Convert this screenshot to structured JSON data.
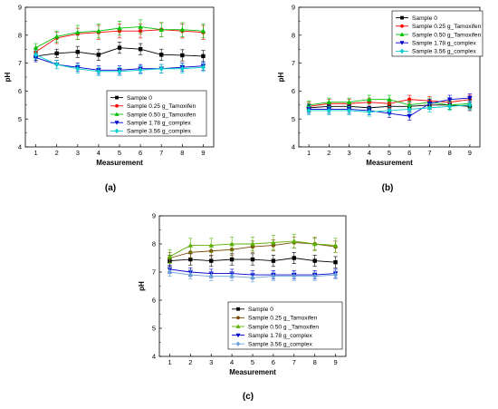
{
  "chart_data": [
    {
      "panel_label": "(a)",
      "type": "line",
      "xlabel": "Measurement",
      "ylabel": "pH",
      "x": [
        1,
        2,
        3,
        4,
        5,
        6,
        7,
        8,
        9
      ],
      "xlim": [
        0.5,
        9.5
      ],
      "ylim": [
        4,
        9
      ],
      "xticks": [
        1,
        2,
        3,
        4,
        5,
        6,
        7,
        8,
        9
      ],
      "yticks": [
        4,
        5,
        6,
        7,
        8,
        9
      ],
      "legend_position": "bottom-center",
      "error_bars": true,
      "series": [
        {
          "name": "Sample 0",
          "color": "#000000",
          "marker": "square",
          "values": [
            7.25,
            7.35,
            7.4,
            7.3,
            7.55,
            7.5,
            7.3,
            7.28,
            7.25
          ],
          "errors": [
            0.15,
            0.15,
            0.2,
            0.2,
            0.2,
            0.2,
            0.2,
            0.2,
            0.2
          ]
        },
        {
          "name": "Sample 0.25 g_Tamoxifen",
          "color": "#ff0000",
          "marker": "circle",
          "values": [
            7.4,
            7.9,
            8.05,
            8.1,
            8.15,
            8.15,
            8.2,
            8.15,
            8.1
          ],
          "errors": [
            0.15,
            0.2,
            0.2,
            0.25,
            0.25,
            0.25,
            0.25,
            0.25,
            0.25
          ]
        },
        {
          "name": "Sample 0.50 g_Tamoxifen",
          "color": "#00c000",
          "marker": "triangle-up",
          "values": [
            7.55,
            7.95,
            8.1,
            8.15,
            8.25,
            8.3,
            8.2,
            8.2,
            8.15
          ],
          "errors": [
            0.15,
            0.2,
            0.25,
            0.25,
            0.25,
            0.25,
            0.25,
            0.25,
            0.25
          ]
        },
        {
          "name": "Sample 1.78 g_complex",
          "color": "#0000cc",
          "marker": "triangle-down",
          "values": [
            7.2,
            6.95,
            6.85,
            6.75,
            6.75,
            6.8,
            6.8,
            6.85,
            6.9
          ],
          "errors": [
            0.15,
            0.15,
            0.15,
            0.15,
            0.15,
            0.15,
            0.15,
            0.15,
            0.15
          ]
        },
        {
          "name": "Sample 3.56 g_complex",
          "color": "#00cccc",
          "marker": "diamond",
          "values": [
            7.3,
            6.95,
            6.8,
            6.7,
            6.7,
            6.75,
            6.8,
            6.8,
            6.85
          ],
          "errors": [
            0.15,
            0.15,
            0.15,
            0.15,
            0.15,
            0.15,
            0.15,
            0.15,
            0.15
          ]
        }
      ]
    },
    {
      "panel_label": "(b)",
      "type": "line",
      "xlabel": "Measurement",
      "ylabel": "pH",
      "x": [
        1,
        2,
        3,
        4,
        5,
        6,
        7,
        8,
        9
      ],
      "xlim": [
        0.5,
        9.5
      ],
      "ylim": [
        4,
        9
      ],
      "xticks": [
        1,
        2,
        3,
        4,
        5,
        6,
        7,
        8,
        9
      ],
      "yticks": [
        4,
        5,
        6,
        7,
        8,
        9
      ],
      "legend_position": "top-right",
      "error_bars": true,
      "series": [
        {
          "name": "Sample 0",
          "color": "#000000",
          "marker": "square",
          "values": [
            5.4,
            5.45,
            5.45,
            5.4,
            5.45,
            5.45,
            5.5,
            5.5,
            5.45
          ],
          "errors": [
            0.15,
            0.15,
            0.15,
            0.15,
            0.15,
            0.15,
            0.15,
            0.15,
            0.15
          ]
        },
        {
          "name": "Sample 0.25 g_Tamoxifen",
          "color": "#ff0000",
          "marker": "circle",
          "values": [
            5.45,
            5.55,
            5.55,
            5.6,
            5.55,
            5.7,
            5.65,
            5.6,
            5.7
          ],
          "errors": [
            0.15,
            0.15,
            0.15,
            0.15,
            0.15,
            0.15,
            0.15,
            0.15,
            0.15
          ]
        },
        {
          "name": "Sample 0.50 g_Tamoxifen",
          "color": "#00c000",
          "marker": "triangle-up",
          "values": [
            5.5,
            5.6,
            5.6,
            5.7,
            5.7,
            5.5,
            5.6,
            5.5,
            5.55
          ],
          "errors": [
            0.15,
            0.15,
            0.15,
            0.15,
            0.15,
            0.15,
            0.15,
            0.15,
            0.15
          ]
        },
        {
          "name": "Sample 1.78 g_complex",
          "color": "#0000cc",
          "marker": "triangle-down",
          "values": [
            5.35,
            5.35,
            5.35,
            5.3,
            5.2,
            5.1,
            5.55,
            5.7,
            5.75
          ],
          "errors": [
            0.15,
            0.15,
            0.15,
            0.15,
            0.15,
            0.15,
            0.15,
            0.15,
            0.15
          ]
        },
        {
          "name": "Sample 3.56 g_complex",
          "color": "#00cccc",
          "marker": "diamond",
          "values": [
            5.3,
            5.3,
            5.3,
            5.25,
            5.3,
            5.35,
            5.4,
            5.45,
            5.5
          ],
          "errors": [
            0.15,
            0.15,
            0.15,
            0.15,
            0.15,
            0.15,
            0.15,
            0.15,
            0.15
          ]
        }
      ]
    },
    {
      "panel_label": "(c)",
      "type": "line",
      "xlabel": "Measurement",
      "ylabel": "pH",
      "x": [
        1,
        2,
        3,
        4,
        5,
        6,
        7,
        8,
        9
      ],
      "xlim": [
        0.5,
        9.5
      ],
      "ylim": [
        4,
        9
      ],
      "xticks": [
        1,
        2,
        3,
        4,
        5,
        6,
        7,
        8,
        9
      ],
      "yticks": [
        4,
        5,
        6,
        7,
        8,
        9
      ],
      "legend_position": "bottom-center",
      "error_bars": true,
      "series": [
        {
          "name": "Sample 0",
          "color": "#000000",
          "marker": "square",
          "values": [
            7.4,
            7.45,
            7.4,
            7.45,
            7.45,
            7.4,
            7.5,
            7.4,
            7.35
          ],
          "errors": [
            0.2,
            0.2,
            0.2,
            0.2,
            0.2,
            0.2,
            0.2,
            0.2,
            0.2
          ]
        },
        {
          "name": "Sample 0.25 g_Tamoxifen",
          "color": "#7a4a00",
          "marker": "circle",
          "values": [
            7.5,
            7.7,
            7.75,
            7.8,
            7.9,
            7.95,
            8.05,
            8.0,
            7.9
          ],
          "errors": [
            0.2,
            0.2,
            0.2,
            0.2,
            0.2,
            0.2,
            0.2,
            0.2,
            0.2
          ]
        },
        {
          "name": "Sample 0.50 g _Tamoxifen",
          "color": "#5ab000",
          "marker": "triangle-up",
          "values": [
            7.55,
            7.95,
            7.95,
            8.0,
            8.0,
            8.05,
            8.1,
            8.0,
            7.95
          ],
          "errors": [
            0.25,
            0.25,
            0.25,
            0.25,
            0.25,
            0.25,
            0.25,
            0.25,
            0.25
          ]
        },
        {
          "name": "Sample 1.78 g_complex",
          "color": "#0000cc",
          "marker": "triangle-down",
          "values": [
            7.1,
            7.0,
            6.95,
            6.95,
            6.9,
            6.9,
            6.9,
            6.9,
            6.95
          ],
          "errors": [
            0.15,
            0.15,
            0.15,
            0.15,
            0.15,
            0.15,
            0.15,
            0.15,
            0.15
          ]
        },
        {
          "name": "Sample 3.56 g_complex",
          "color": "#6aa0d8",
          "marker": "diamond",
          "values": [
            7.0,
            6.9,
            6.85,
            6.85,
            6.8,
            6.85,
            6.85,
            6.85,
            6.9
          ],
          "errors": [
            0.15,
            0.15,
            0.15,
            0.15,
            0.15,
            0.15,
            0.15,
            0.15,
            0.15
          ]
        }
      ]
    }
  ]
}
